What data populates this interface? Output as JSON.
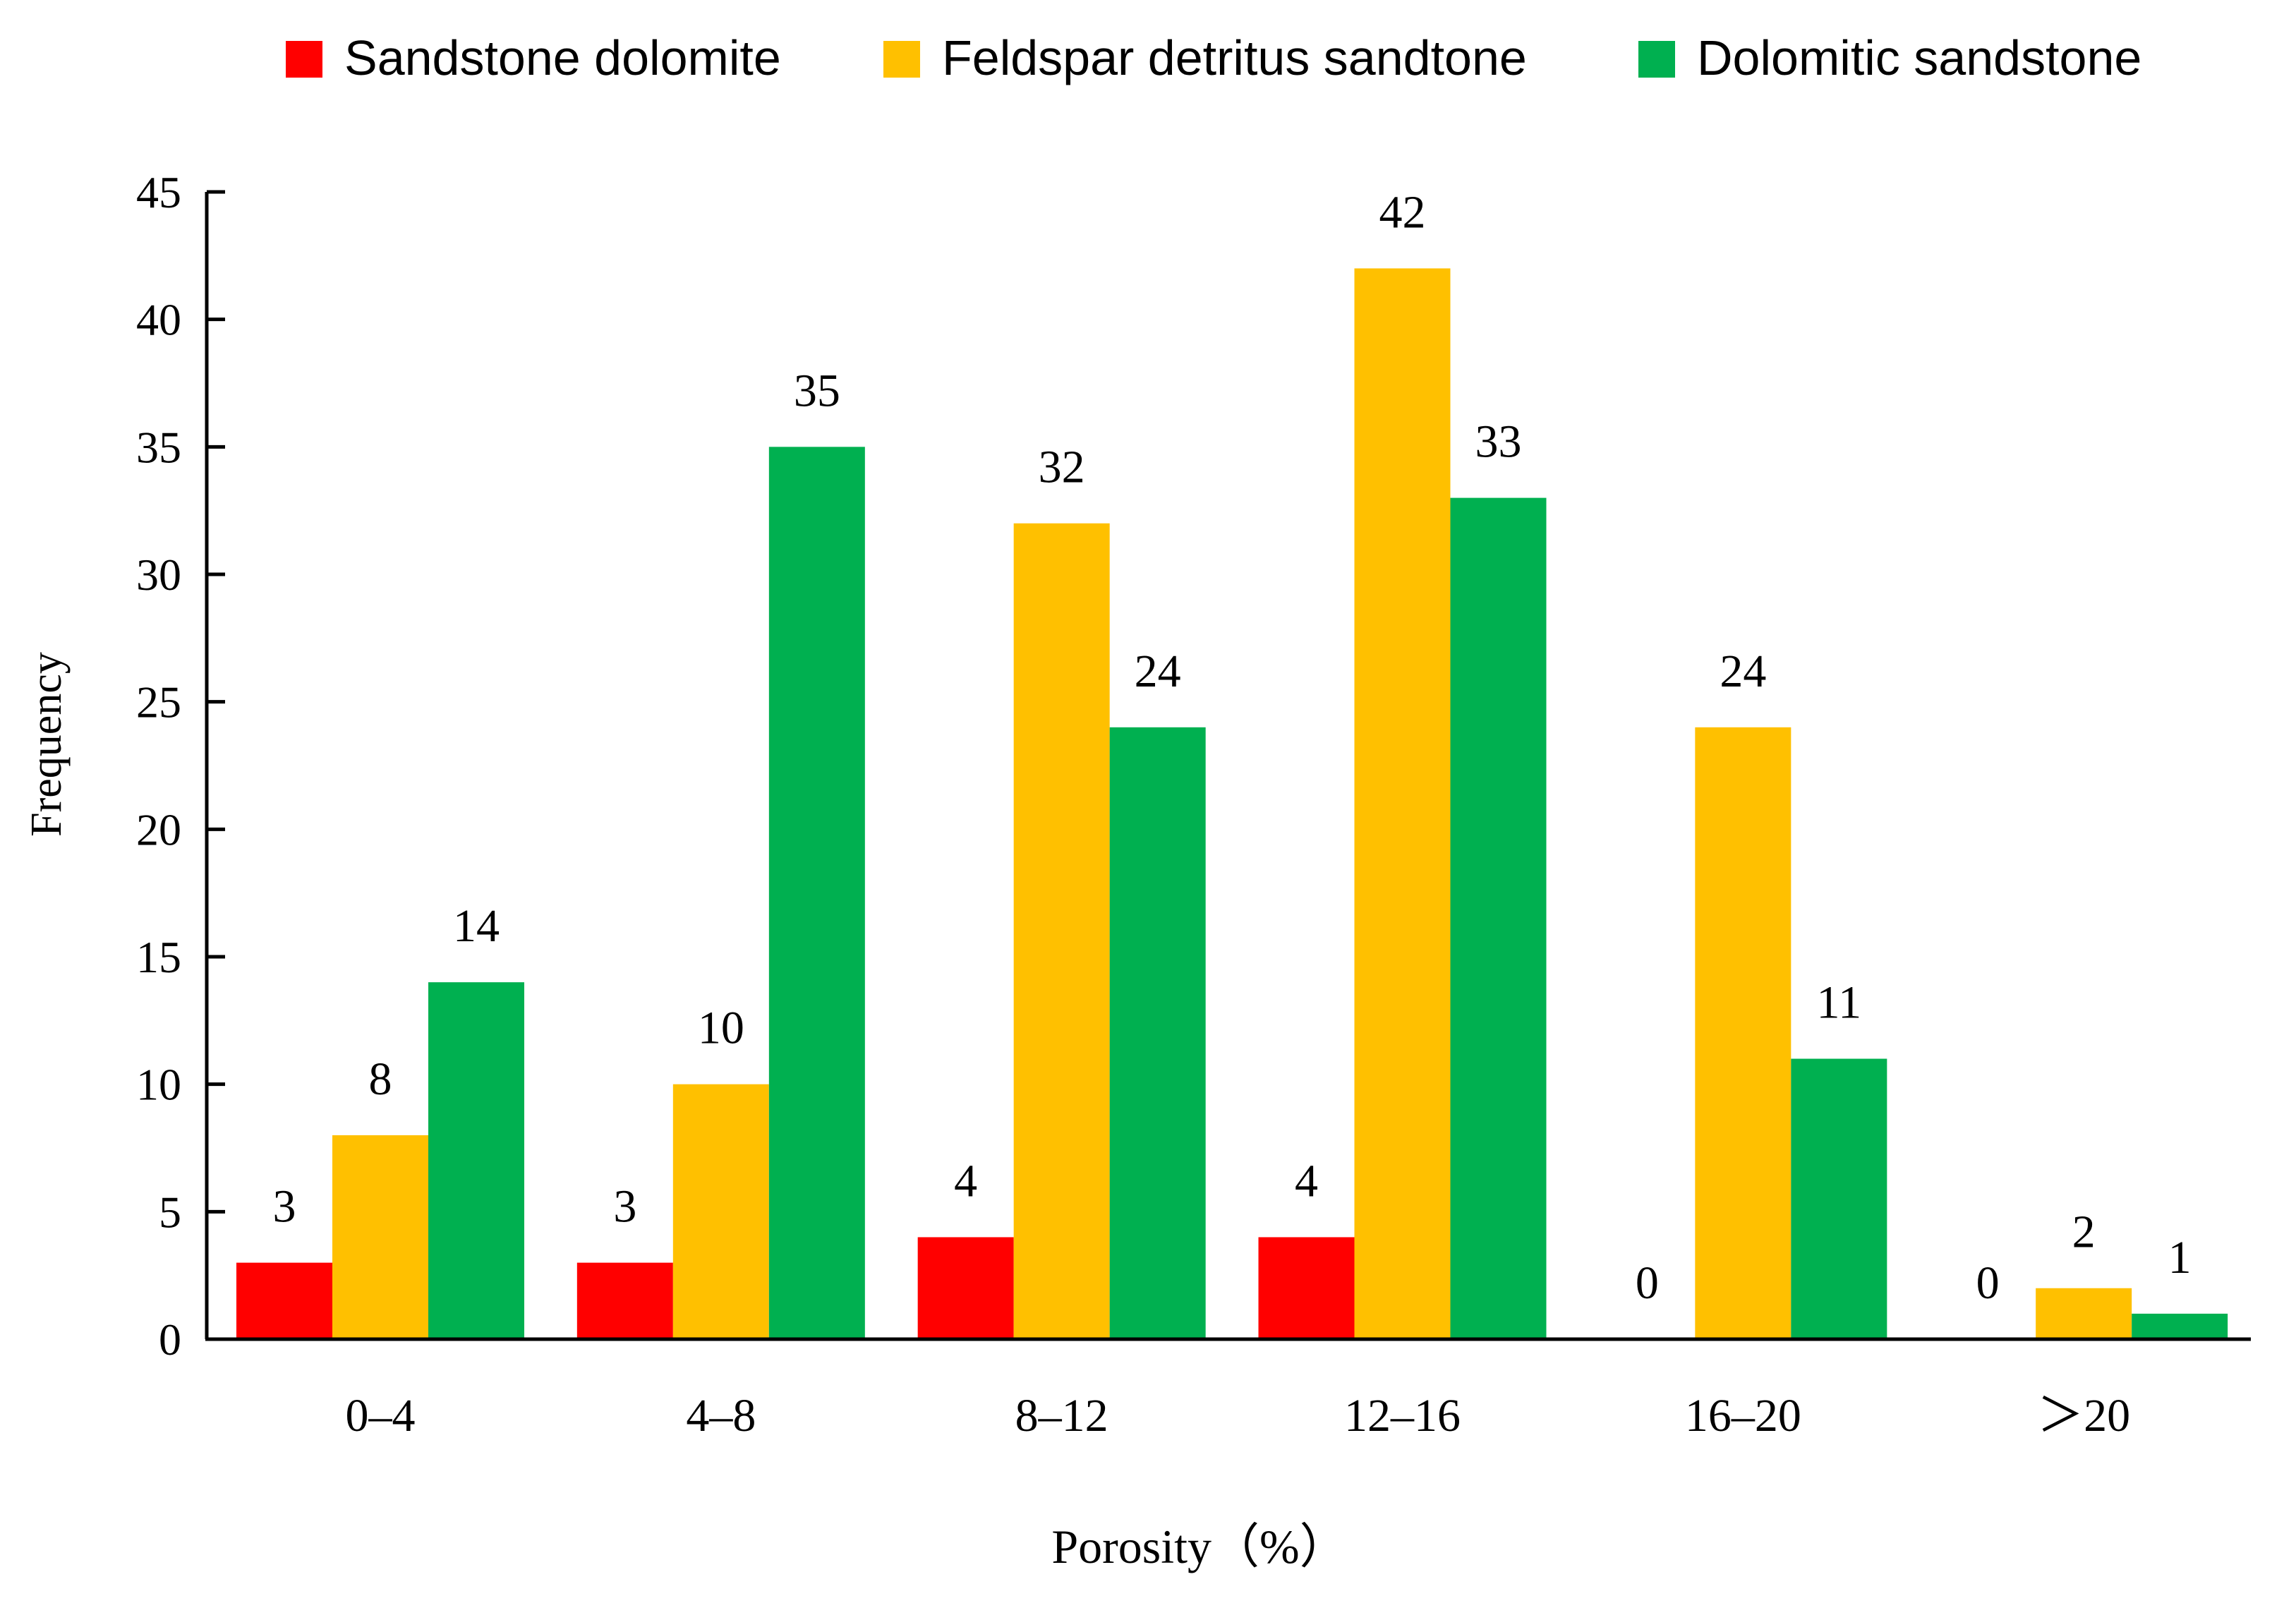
{
  "chart_data": {
    "type": "bar",
    "title": "",
    "xlabel": "Porosity（%）",
    "ylabel": "Frequency",
    "ylim": [
      0,
      45
    ],
    "yticks": [
      0,
      5,
      10,
      15,
      20,
      25,
      30,
      35,
      40,
      45
    ],
    "grid": false,
    "legend_position": "top",
    "categories": [
      "0–4",
      "4–8",
      "8–12",
      "12–16",
      "16–20",
      "＞20"
    ],
    "series": [
      {
        "name": "Sandstone dolomite",
        "color": "#ff0000",
        "values": [
          3,
          3,
          4,
          4,
          0,
          0
        ]
      },
      {
        "name": "Feldspar detritus sandtone",
        "color": "#ffc000",
        "values": [
          8,
          10,
          32,
          42,
          24,
          2
        ]
      },
      {
        "name": "Dolomitic sandstone",
        "color": "#00b050",
        "values": [
          14,
          35,
          24,
          33,
          11,
          1
        ]
      }
    ]
  }
}
